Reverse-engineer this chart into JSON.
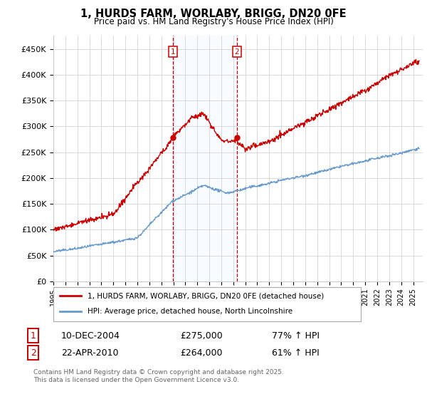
{
  "title": "1, HURDS FARM, WORLABY, BRIGG, DN20 0FE",
  "subtitle": "Price paid vs. HM Land Registry's House Price Index (HPI)",
  "red_label": "1, HURDS FARM, WORLABY, BRIGG, DN20 0FE (detached house)",
  "blue_label": "HPI: Average price, detached house, North Lincolnshire",
  "sale1_date": "10-DEC-2004",
  "sale1_price": "£275,000",
  "sale1_hpi": "77% ↑ HPI",
  "sale1_year": 2004.95,
  "sale2_date": "22-APR-2010",
  "sale2_price": "£264,000",
  "sale2_hpi": "61% ↑ HPI",
  "sale2_year": 2010.3,
  "ylim": [
    0,
    475000
  ],
  "yticks": [
    0,
    50000,
    100000,
    150000,
    200000,
    250000,
    300000,
    350000,
    400000,
    450000
  ],
  "ytick_labels": [
    "£0",
    "£50K",
    "£100K",
    "£150K",
    "£200K",
    "£250K",
    "£300K",
    "£350K",
    "£400K",
    "£450K"
  ],
  "background_color": "#ffffff",
  "grid_color": "#cccccc",
  "red_color": "#cc0000",
  "blue_color": "#6699cc",
  "shade_color": "#ddeeff",
  "footnote": "Contains HM Land Registry data © Crown copyright and database right 2025.\nThis data is licensed under the Open Government Licence v3.0."
}
